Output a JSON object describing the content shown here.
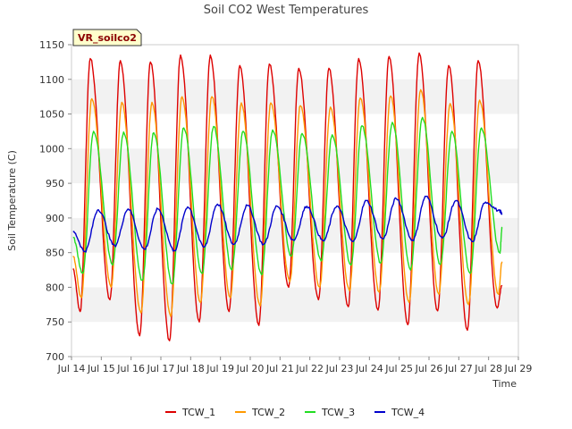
{
  "chart_data": {
    "type": "line",
    "title": "Soil CO2 West Temperatures",
    "xlabel": "Time",
    "ylabel": "Soil Temperature (C)",
    "badge": "VR_soilco2",
    "ylim": [
      700,
      1150
    ],
    "yticks": [
      700,
      750,
      800,
      850,
      900,
      950,
      1000,
      1050,
      1100,
      1150
    ],
    "xlim": [
      14,
      29
    ],
    "xticks": [
      {
        "v": 14,
        "label": "Jul 14"
      },
      {
        "v": 15,
        "label": "Jul 15"
      },
      {
        "v": 16,
        "label": "Jul 16"
      },
      {
        "v": 17,
        "label": "Jul 17"
      },
      {
        "v": 18,
        "label": "Jul 18"
      },
      {
        "v": 19,
        "label": "Jul 19"
      },
      {
        "v": 20,
        "label": "Jul 20"
      },
      {
        "v": 21,
        "label": "Jul 21"
      },
      {
        "v": 22,
        "label": "Jul 22"
      },
      {
        "v": 23,
        "label": "Jul 23"
      },
      {
        "v": 24,
        "label": "Jul 24"
      },
      {
        "v": 25,
        "label": "Jul 25"
      },
      {
        "v": 26,
        "label": "Jul 26"
      },
      {
        "v": 27,
        "label": "Jul 27"
      },
      {
        "v": 28,
        "label": "Jul 28"
      },
      {
        "v": 29,
        "label": "Jul 29"
      }
    ],
    "grid": "horizontal bands",
    "legend_position": "bottom",
    "series": [
      {
        "name": "TCW_1",
        "color": "#dd0000",
        "x": [
          14.05,
          14.29,
          14.63,
          15.29,
          15.64,
          16.29,
          16.65,
          17.29,
          17.66,
          18.29,
          18.66,
          19.29,
          19.65,
          20.29,
          20.64,
          21.29,
          21.63,
          22.29,
          22.64,
          23.29,
          23.64,
          24.29,
          24.66,
          25.29,
          25.67,
          26.29,
          26.66,
          27.29,
          27.65,
          28.29,
          28.45
        ],
        "y": [
          827,
          765,
          1130,
          782,
          1127,
          730,
          1125,
          723,
          1135,
          750,
          1135,
          765,
          1120,
          745,
          1122,
          800,
          1116,
          782,
          1116,
          772,
          1130,
          767,
          1133,
          746,
          1138,
          766,
          1120,
          738,
          1127,
          770,
          803
        ]
      },
      {
        "name": "TCW_2",
        "color": "#ff9900",
        "x": [
          14.05,
          14.33,
          14.68,
          15.33,
          15.69,
          16.33,
          16.7,
          17.33,
          17.71,
          18.33,
          18.71,
          19.33,
          19.7,
          20.33,
          20.69,
          21.33,
          21.68,
          22.33,
          22.69,
          23.33,
          23.69,
          24.33,
          24.71,
          25.33,
          25.72,
          26.33,
          26.71,
          27.33,
          27.7,
          28.33,
          28.45
        ],
        "y": [
          845,
          785,
          1072,
          800,
          1067,
          763,
          1067,
          758,
          1075,
          778,
          1075,
          785,
          1066,
          773,
          1066,
          808,
          1062,
          800,
          1060,
          795,
          1073,
          793,
          1076,
          778,
          1085,
          790,
          1065,
          775,
          1070,
          790,
          837
        ]
      },
      {
        "name": "TCW_3",
        "color": "#22dd22",
        "x": [
          14.05,
          14.38,
          14.74,
          15.38,
          15.75,
          16.38,
          16.76,
          17.38,
          17.77,
          18.38,
          18.77,
          19.38,
          19.76,
          20.38,
          20.75,
          21.38,
          21.74,
          22.38,
          22.75,
          23.38,
          23.75,
          24.38,
          24.77,
          25.38,
          25.78,
          26.38,
          26.77,
          27.38,
          27.76,
          28.38,
          28.45
        ],
        "y": [
          872,
          820,
          1025,
          832,
          1024,
          810,
          1023,
          805,
          1030,
          820,
          1032,
          825,
          1025,
          818,
          1027,
          845,
          1022,
          838,
          1020,
          832,
          1033,
          835,
          1038,
          825,
          1045,
          833,
          1025,
          820,
          1030,
          850,
          885
        ]
      },
      {
        "name": "TCW_4",
        "color": "#0000cc",
        "x": [
          14.05,
          14.45,
          14.9,
          15.45,
          15.9,
          16.45,
          16.9,
          17.45,
          17.9,
          18.45,
          18.9,
          19.45,
          19.9,
          20.45,
          20.9,
          21.45,
          21.9,
          22.45,
          22.9,
          23.45,
          23.9,
          24.45,
          24.9,
          25.45,
          25.9,
          26.45,
          26.9,
          27.45,
          27.9,
          28.38,
          28.45
        ],
        "y": [
          880,
          852,
          912,
          860,
          913,
          855,
          913,
          853,
          916,
          858,
          920,
          862,
          918,
          862,
          917,
          868,
          917,
          867,
          917,
          866,
          925,
          870,
          928,
          868,
          931,
          871,
          925,
          866,
          923,
          910,
          906
        ]
      }
    ]
  }
}
